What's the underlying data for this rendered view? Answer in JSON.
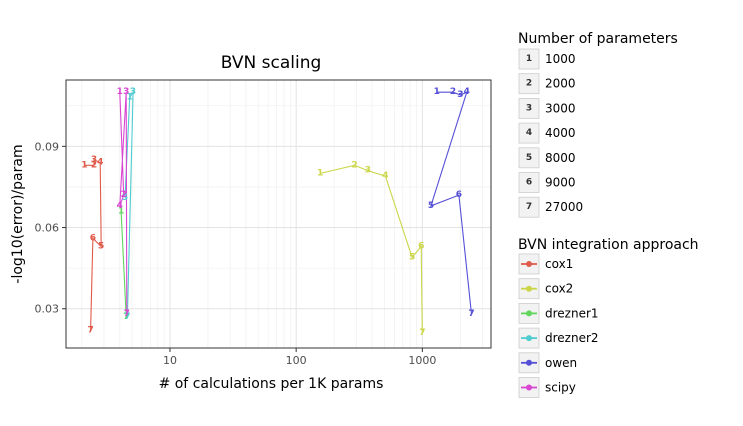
{
  "chart_data": {
    "type": "line",
    "title": "BVN scaling",
    "xlabel": "# of calculations per 1K params",
    "ylabel": "-log10(error)/param",
    "x_scale": "log",
    "xlim": [
      1.5,
      3500
    ],
    "ylim": [
      0.0155,
      0.1145
    ],
    "x_ticks": [
      10,
      100,
      1000
    ],
    "x_tick_labels": [
      "10",
      "100",
      "1000"
    ],
    "y_ticks": [
      0.03,
      0.06,
      0.09
    ],
    "y_tick_labels": [
      "0.03",
      "0.06",
      "0.09"
    ],
    "grid": true,
    "legend_placement": "right",
    "legend_param_title": "Number of parameters",
    "legend_params": [
      {
        "code": "1",
        "label": "1000"
      },
      {
        "code": "2",
        "label": "2000"
      },
      {
        "code": "3",
        "label": "3000"
      },
      {
        "code": "4",
        "label": "4000"
      },
      {
        "code": "5",
        "label": "8000"
      },
      {
        "code": "6",
        "label": "9000"
      },
      {
        "code": "7",
        "label": "27000"
      }
    ],
    "legend_method_title": "BVN integration approach",
    "series": [
      {
        "name": "cox1",
        "color": "#E05A4B",
        "points": [
          {
            "x": 2.1,
            "y": 0.083,
            "label": "1"
          },
          {
            "x": 2.5,
            "y": 0.083,
            "label": "2"
          },
          {
            "x": 2.5,
            "y": 0.085,
            "label": "3"
          },
          {
            "x": 2.8,
            "y": 0.084,
            "label": "4"
          },
          {
            "x": 2.85,
            "y": 0.053,
            "label": "5"
          },
          {
            "x": 2.45,
            "y": 0.056,
            "label": "6"
          },
          {
            "x": 2.35,
            "y": 0.022,
            "label": "7"
          }
        ]
      },
      {
        "name": "cox2",
        "color": "#CBD648",
        "points": [
          {
            "x": 155,
            "y": 0.08,
            "label": "1"
          },
          {
            "x": 290,
            "y": 0.083,
            "label": "2"
          },
          {
            "x": 370,
            "y": 0.081,
            "label": "3"
          },
          {
            "x": 510,
            "y": 0.079,
            "label": "4"
          },
          {
            "x": 830,
            "y": 0.049,
            "label": "5"
          },
          {
            "x": 980,
            "y": 0.053,
            "label": "6"
          },
          {
            "x": 1000,
            "y": 0.021,
            "label": "7"
          }
        ]
      },
      {
        "name": "drezner1",
        "color": "#5FD55B",
        "points": [
          {
            "x": 4.1,
            "y": 0.066,
            "label": "1"
          },
          {
            "x": 4.5,
            "y": 0.027,
            "label": "7"
          }
        ]
      },
      {
        "name": "drezner2",
        "color": "#4FCCD0",
        "points": [
          {
            "x": 4.4,
            "y": 0.071,
            "label": "5"
          },
          {
            "x": 4.8,
            "y": 0.108,
            "label": "1"
          },
          {
            "x": 5.1,
            "y": 0.11,
            "label": "3"
          },
          {
            "x": 4.6,
            "y": 0.027,
            "label": "7"
          }
        ]
      },
      {
        "name": "owen",
        "color": "#5550D6",
        "points": [
          {
            "x": 1300,
            "y": 0.11,
            "label": "1"
          },
          {
            "x": 1750,
            "y": 0.11,
            "label": "2"
          },
          {
            "x": 2000,
            "y": 0.109,
            "label": "3"
          },
          {
            "x": 2250,
            "y": 0.11,
            "label": "4"
          },
          {
            "x": 1170,
            "y": 0.068,
            "label": "5"
          },
          {
            "x": 1950,
            "y": 0.072,
            "label": "6"
          },
          {
            "x": 2450,
            "y": 0.028,
            "label": "7"
          }
        ]
      },
      {
        "name": "scipy",
        "color": "#D946D2",
        "points": [
          {
            "x": 4.0,
            "y": 0.11,
            "label": "1"
          },
          {
            "x": 4.3,
            "y": 0.072,
            "label": "2"
          },
          {
            "x": 4.0,
            "y": 0.068,
            "label": "4"
          },
          {
            "x": 4.5,
            "y": 0.11,
            "label": "3"
          },
          {
            "x": 4.55,
            "y": 0.028,
            "label": "7"
          }
        ]
      }
    ]
  }
}
